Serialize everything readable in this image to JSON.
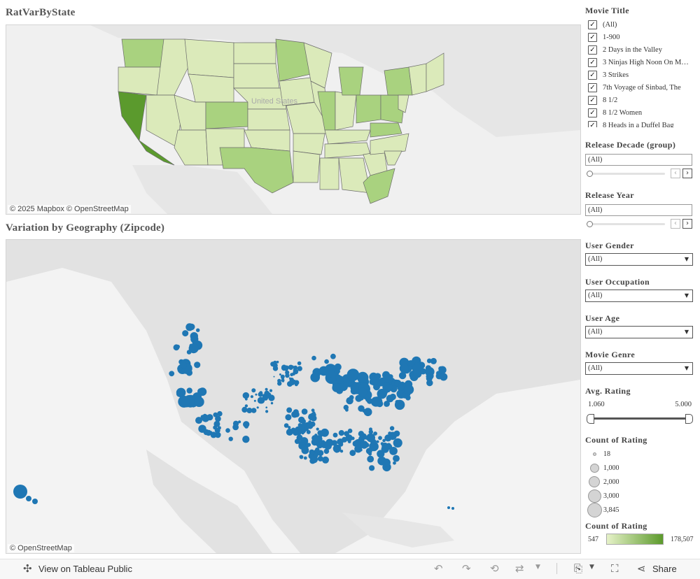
{
  "top_map": {
    "title": "RatVarByState",
    "country_label": "United States",
    "attribution": "© 2025 Mapbox  © OpenStreetMap",
    "colors": {
      "low": "#dbeaba",
      "mid": "#a9d27f",
      "high": "#5b9a2d",
      "border": "#6b6b6b",
      "land": "#e8e8e8",
      "water": "#ffffff"
    }
  },
  "bottom_map": {
    "title": "Variation by Geography (Zipcode)",
    "attribution": "© OpenStreetMap",
    "colors": {
      "marker": "#1f77b4",
      "land": "#e4e4e4"
    }
  },
  "filters": {
    "movie_title": {
      "label": "Movie Title",
      "items": [
        "(All)",
        "1-900",
        "2 Days in the Valley",
        "3 Ninjas High Noon On M…",
        "3 Strikes",
        "7th Voyage of Sinbad, The",
        "8 1/2",
        "8 1/2 Women",
        "8 Heads in a Duffel Bag"
      ]
    },
    "release_decade": {
      "label": "Release Decade (group)",
      "value": "(All)"
    },
    "release_year": {
      "label": "Release Year",
      "value": "(All)"
    },
    "user_gender": {
      "label": "User Gender",
      "value": "(All)"
    },
    "user_occupation": {
      "label": "User Occupation",
      "value": "(All)"
    },
    "user_age": {
      "label": "User Age",
      "value": "(All)"
    },
    "movie_genre": {
      "label": "Movie Genre",
      "value": "(All)"
    },
    "avg_rating": {
      "label": "Avg. Rating",
      "min": "1.060",
      "max": "5.000"
    }
  },
  "legends": {
    "count_size": {
      "label": "Count of Rating",
      "items": [
        "18",
        "1,000",
        "2,000",
        "3,000",
        "3,845"
      ]
    },
    "count_color": {
      "label": "Count of Rating",
      "min": "547",
      "max": "178,507"
    }
  },
  "toolbar": {
    "view_label": "View on Tableau Public",
    "share_label": "Share"
  }
}
